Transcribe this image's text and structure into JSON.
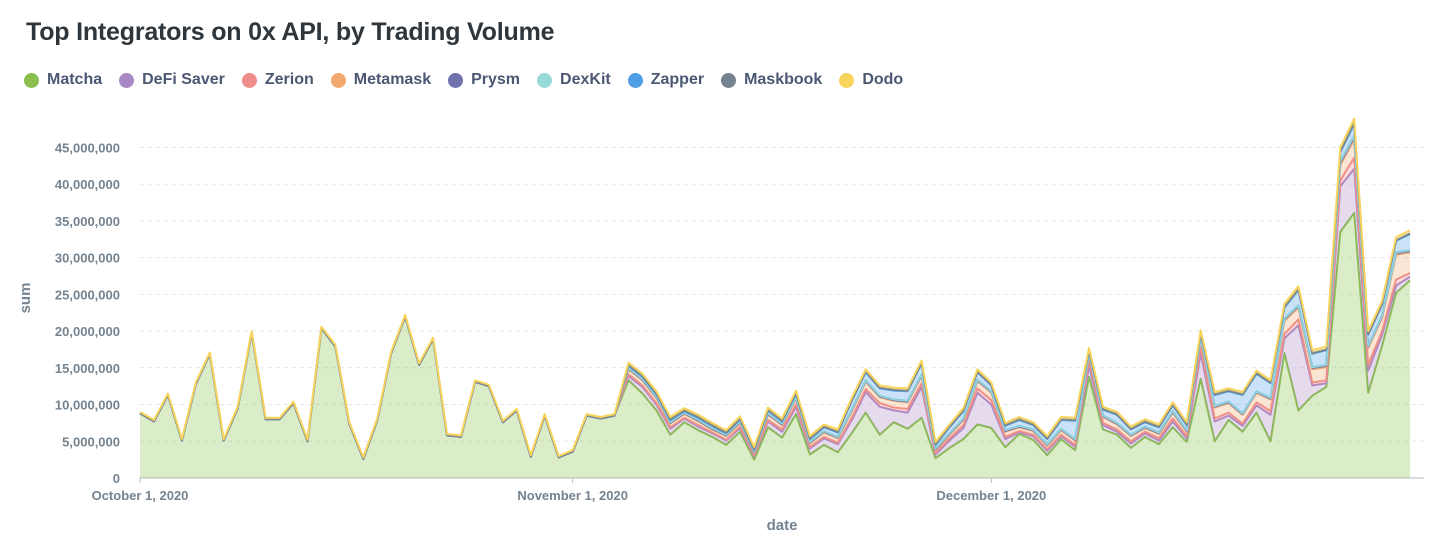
{
  "chart_data": {
    "type": "area",
    "stacked": true,
    "title": "Top Integrators on 0x API, by Trading Volume",
    "xlabel": "date",
    "ylabel": "sum",
    "ylim": [
      0,
      49000000
    ],
    "y_ticks": [
      0,
      5000000,
      10000000,
      15000000,
      20000000,
      25000000,
      30000000,
      35000000,
      40000000,
      45000000
    ],
    "y_tick_labels": [
      "0",
      "5,000,000",
      "10,000,000",
      "15,000,000",
      "20,000,000",
      "25,000,000",
      "30,000,000",
      "35,000,000",
      "40,000,000",
      "45,000,000"
    ],
    "x_tick_labels": [
      {
        "day": 0,
        "label": "October 1, 2020"
      },
      {
        "day": 31,
        "label": "November 1, 2020"
      },
      {
        "day": 61,
        "label": "December 1, 2020"
      }
    ],
    "x_range_days": [
      0,
      92
    ],
    "legend_position": "top-left",
    "series": [
      {
        "name": "Matcha",
        "color": "#88bf4d"
      },
      {
        "name": "DeFi Saver",
        "color": "#a989c5"
      },
      {
        "name": "Zerion",
        "color": "#ef8c8c"
      },
      {
        "name": "Metamask",
        "color": "#f2a86f"
      },
      {
        "name": "Prysm",
        "color": "#7172ad"
      },
      {
        "name": "DexKit",
        "color": "#98d9d9"
      },
      {
        "name": "Zapper",
        "color": "#509ee3"
      },
      {
        "name": "Maskbook",
        "color": "#74838f"
      },
      {
        "name": "Dodo",
        "color": "#f9d45c"
      }
    ],
    "matcha": [
      8.8,
      7.7,
      11.3,
      5.1,
      12.8,
      16.9,
      5.1,
      9.5,
      19.8,
      8.0,
      8.0,
      10.2,
      5.0,
      20.4,
      17.9,
      7.4,
      2.6,
      7.9,
      17.0,
      22.0,
      15.4,
      18.9,
      5.8,
      5.6,
      13.1,
      12.5,
      7.6,
      9.2,
      2.9,
      8.5,
      2.8,
      3.6,
      8.5,
      8.1,
      8.5,
      13.3,
      11.5,
      9.2,
      5.9,
      7.6,
      6.5,
      5.6,
      4.5,
      6.3,
      2.5,
      6.9,
      5.5,
      8.7,
      3.2,
      4.5,
      3.5,
      6.1,
      8.9,
      5.9,
      7.6,
      6.7,
      8.2,
      2.7,
      4.1,
      5.3,
      7.3,
      6.8,
      4.2,
      6.0,
      5.2,
      3.1,
      5.3,
      3.8,
      13.8,
      6.6,
      5.9,
      4.1,
      5.6,
      4.6,
      6.9,
      4.9,
      13.5,
      5.0,
      7.9,
      6.3,
      8.9,
      5.0,
      17.0,
      9.2,
      11.2,
      12.4,
      33.5,
      36.1,
      11.6,
      18.0,
      25.2,
      26.9
    ],
    "defi_saver": [
      0,
      0,
      0,
      0,
      0,
      0,
      0,
      0,
      0,
      0,
      0,
      0,
      0,
      0,
      0,
      0,
      0,
      0,
      0,
      0,
      0,
      0,
      0,
      0,
      0,
      0,
      0,
      0,
      0,
      0,
      0,
      0,
      0,
      0,
      0,
      0.6,
      0.9,
      0.8,
      0.8,
      0.5,
      0.5,
      0.5,
      0.6,
      0.5,
      0.5,
      0.8,
      0.8,
      1.0,
      0.8,
      0.9,
      1.1,
      1.8,
      2.8,
      3.8,
      1.6,
      2.2,
      4.2,
      0.5,
      1.0,
      1.5,
      4.3,
      3.2,
      1.1,
      0.2,
      0.5,
      0.6,
      0.4,
      0.5,
      1.5,
      0.6,
      0.4,
      0.6,
      0.5,
      0.5,
      0.8,
      0.5,
      3.5,
      2.7,
      0.6,
      0.8,
      1.0,
      3.6,
      2.0,
      11.6,
      1.4,
      0.5,
      6.2,
      6.0,
      3.0,
      1.5,
      1.0,
      0.5
    ],
    "zerion": [
      0,
      0,
      0,
      0,
      0,
      0,
      0,
      0,
      0,
      0,
      0,
      0,
      0,
      0,
      0,
      0,
      0,
      0,
      0,
      0,
      0,
      0,
      0,
      0,
      0,
      0,
      0,
      0,
      0,
      0,
      0,
      0,
      0,
      0,
      0,
      0.2,
      0.2,
      0.2,
      0.2,
      0.1,
      0.2,
      0.1,
      0.1,
      0.2,
      0.1,
      0.2,
      0.3,
      0.3,
      0.2,
      0.2,
      0.2,
      0.3,
      0.4,
      0.5,
      0.4,
      0.5,
      0.5,
      0.2,
      0.3,
      0.4,
      0.6,
      0.6,
      0.3,
      0.2,
      0.2,
      0.2,
      0.2,
      0.2,
      0.7,
      0.3,
      0.3,
      0.3,
      0.2,
      0.3,
      0.4,
      0.3,
      0.8,
      0.4,
      0.4,
      0.3,
      0.4,
      0.5,
      0.6,
      0.8,
      0.4,
      0.4,
      0.8,
      1.5,
      0.8,
      0.5,
      0.8,
      0.5
    ],
    "metamask": [
      0,
      0,
      0,
      0,
      0,
      0,
      0,
      0,
      0,
      0,
      0,
      0,
      0,
      0,
      0,
      0,
      0,
      0,
      0,
      0,
      0,
      0,
      0,
      0,
      0,
      0,
      0,
      0,
      0,
      0,
      0,
      0,
      0,
      0,
      0,
      0.7,
      0.7,
      0.7,
      0.5,
      0.5,
      0.5,
      0.4,
      0.5,
      0.5,
      0.3,
      0.7,
      0.6,
      0.8,
      0.5,
      0.6,
      0.6,
      0.9,
      1.0,
      0.8,
      0.9,
      0.9,
      1.0,
      0.4,
      0.5,
      0.7,
      1.0,
      1.0,
      0.7,
      0.5,
      0.5,
      0.5,
      0.6,
      0.6,
      0.8,
      0.8,
      0.7,
      0.7,
      0.5,
      0.6,
      0.8,
      0.6,
      1.2,
      1.5,
      1.3,
      1.2,
      1.3,
      1.6,
      1.8,
      1.6,
      1.8,
      1.8,
      2.1,
      2.5,
      2.3,
      1.8,
      3.4,
      2.8
    ],
    "prysm": [
      0,
      0,
      0,
      0,
      0,
      0,
      0,
      0,
      0,
      0,
      0,
      0,
      0,
      0,
      0,
      0,
      0,
      0,
      0,
      0,
      0,
      0,
      0,
      0,
      0,
      0,
      0,
      0,
      0,
      0,
      0,
      0,
      0,
      0,
      0,
      0.1,
      0.1,
      0.1,
      0.1,
      0.1,
      0.1,
      0.1,
      0.1,
      0.1,
      0.1,
      0.1,
      0.1,
      0.1,
      0.1,
      0.1,
      0.1,
      0.1,
      0.1,
      0.1,
      0.1,
      0.1,
      0.1,
      0.1,
      0.1,
      0.1,
      0.1,
      0.1,
      0.1,
      0.1,
      0.1,
      0.1,
      0.1,
      0.1,
      0.1,
      0.1,
      0.1,
      0.1,
      0.1,
      0.1,
      0.1,
      0.1,
      0.1,
      0.1,
      0.1,
      0.1,
      0.1,
      0.1,
      0.2,
      0.2,
      0.2,
      0.2,
      0.3,
      0.3,
      0.2,
      0.2,
      0.2,
      0.2
    ],
    "dexkit": [
      0,
      0,
      0,
      0,
      0,
      0,
      0,
      0,
      0,
      0,
      0,
      0,
      0,
      0,
      0,
      0,
      0,
      0,
      0,
      0,
      0,
      0,
      0,
      0,
      0,
      0,
      0,
      0,
      0,
      0,
      0,
      0,
      0,
      0,
      0,
      0.1,
      0.1,
      0.1,
      0.1,
      0.1,
      0.1,
      0.1,
      0.1,
      0.1,
      0.1,
      0.1,
      0.1,
      0.1,
      0.1,
      0.1,
      0.1,
      0.1,
      0.1,
      0.1,
      0.1,
      0.1,
      0.1,
      0.1,
      0.1,
      0.1,
      0.1,
      0.1,
      0.1,
      0.1,
      0.1,
      0.1,
      0.1,
      0.1,
      0.1,
      0.1,
      0.1,
      0.1,
      0.1,
      0.1,
      0.1,
      0.1,
      0.1,
      0.1,
      0.1,
      0.1,
      0.1,
      0.1,
      0.1,
      0.1,
      0.1,
      0.1,
      0.2,
      0.2,
      0.1,
      0.1,
      0.1,
      0.1
    ],
    "zapper": [
      0,
      0,
      0,
      0,
      0,
      0,
      0,
      0,
      0,
      0,
      0,
      0,
      0,
      0,
      0,
      0,
      0,
      0,
      0,
      0,
      0,
      0,
      0,
      0,
      0,
      0,
      0,
      0,
      0,
      0,
      0,
      0,
      0,
      0,
      0,
      0.3,
      0.3,
      0.3,
      0.3,
      0.2,
      0.3,
      0.3,
      0.2,
      0.3,
      0.2,
      0.4,
      0.3,
      0.5,
      0.4,
      0.5,
      0.6,
      1.2,
      1.1,
      1.0,
      1.2,
      1.3,
      1.5,
      0.5,
      0.8,
      1.0,
      1.0,
      0.8,
      0.6,
      0.8,
      0.6,
      0.7,
      1.2,
      2.5,
      0.3,
      0.8,
      1.1,
      0.7,
      0.6,
      0.7,
      0.8,
      0.7,
      0.5,
      1.5,
      1.4,
      2.5,
      2.4,
      2.0,
      1.5,
      2.1,
      1.8,
      2.0,
      1.2,
      1.6,
      1.5,
      1.5,
      1.6,
      2.2
    ],
    "maskbook": [
      0,
      0,
      0,
      0,
      0,
      0,
      0,
      0,
      0,
      0,
      0,
      0,
      0,
      0,
      0,
      0,
      0,
      0,
      0,
      0,
      0,
      0,
      0,
      0,
      0,
      0,
      0,
      0,
      0,
      0,
      0,
      0,
      0,
      0,
      0,
      0.1,
      0.1,
      0.1,
      0.1,
      0.1,
      0.1,
      0.1,
      0.1,
      0.1,
      0.1,
      0.1,
      0.1,
      0.1,
      0.1,
      0.1,
      0.1,
      0.1,
      0.1,
      0.1,
      0.1,
      0.1,
      0.1,
      0.1,
      0.1,
      0.1,
      0.1,
      0.1,
      0.1,
      0.1,
      0.1,
      0.1,
      0.1,
      0.1,
      0.1,
      0.1,
      0.1,
      0.1,
      0.1,
      0.1,
      0.1,
      0.1,
      0.1,
      0.1,
      0.1,
      0.1,
      0.1,
      0.1,
      0.1,
      0.1,
      0.1,
      0.1,
      0.2,
      0.2,
      0.1,
      0.1,
      0.1,
      0.1
    ],
    "dodo": [
      0.2,
      0.2,
      0.2,
      0.2,
      0.2,
      0.2,
      0.2,
      0.2,
      0.2,
      0.2,
      0.2,
      0.2,
      0.2,
      0.2,
      0.2,
      0.2,
      0.2,
      0.2,
      0.2,
      0.2,
      0.2,
      0.2,
      0.2,
      0.2,
      0.2,
      0.2,
      0.2,
      0.2,
      0.2,
      0.2,
      0.2,
      0.2,
      0.2,
      0.2,
      0.2,
      0.3,
      0.3,
      0.3,
      0.3,
      0.3,
      0.3,
      0.3,
      0.3,
      0.3,
      0.3,
      0.3,
      0.3,
      0.3,
      0.3,
      0.3,
      0.3,
      0.3,
      0.3,
      0.3,
      0.3,
      0.3,
      0.3,
      0.3,
      0.3,
      0.3,
      0.3,
      0.3,
      0.3,
      0.3,
      0.3,
      0.3,
      0.3,
      0.3,
      0.3,
      0.3,
      0.3,
      0.3,
      0.3,
      0.3,
      0.3,
      0.3,
      0.3,
      0.3,
      0.3,
      0.3,
      0.3,
      0.3,
      0.4,
      0.4,
      0.4,
      0.4,
      0.5,
      0.5,
      0.4,
      0.4,
      0.4,
      0.4
    ],
    "value_unit": "millions"
  }
}
